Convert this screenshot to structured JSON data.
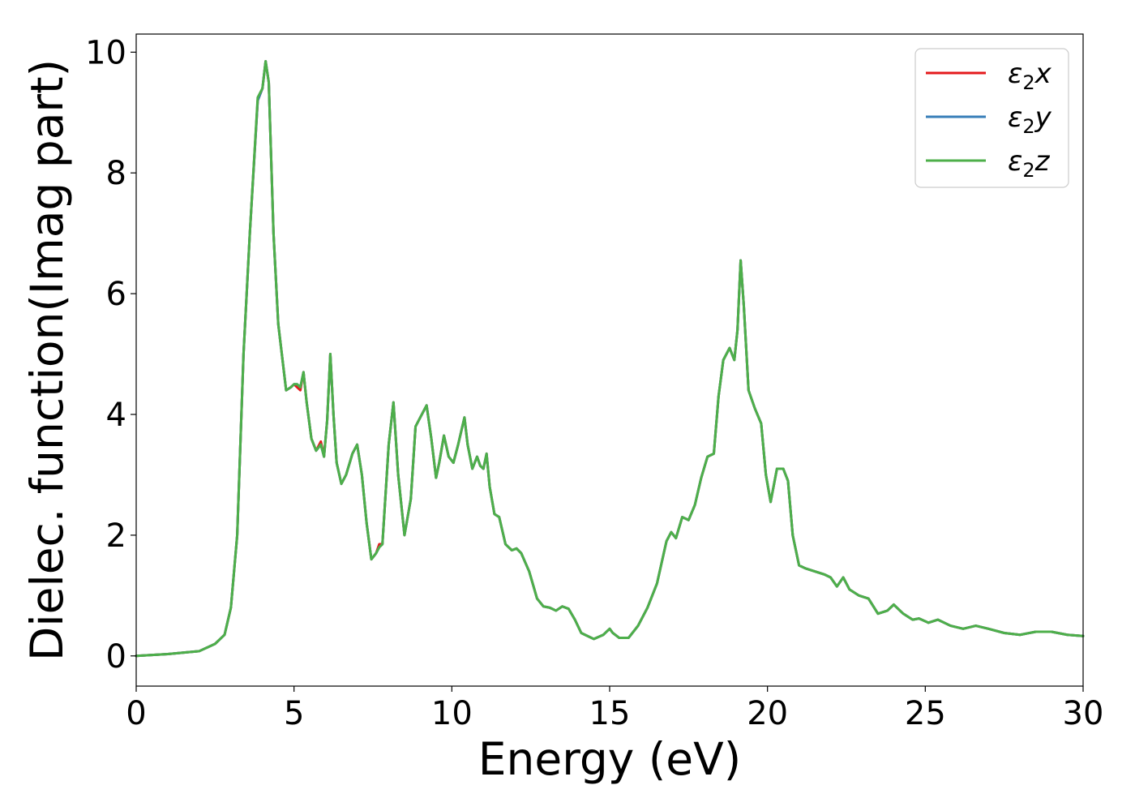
{
  "chart_data": {
    "type": "line",
    "xlabel": "Energy (eV)",
    "ylabel": "Dielec. function(Imag part)",
    "xlim": [
      0,
      30
    ],
    "ylim": [
      -0.5,
      10.3
    ],
    "xticks": [
      0,
      5,
      10,
      15,
      20,
      25,
      30
    ],
    "yticks": [
      0,
      2,
      4,
      6,
      8,
      10
    ],
    "grid": false,
    "legend_position": "top-right",
    "series": [
      {
        "name": "ε₂x",
        "sym": "ε",
        "sub": "2",
        "comp": "x",
        "color": "#e41a1c",
        "x": [
          0,
          1,
          2,
          2.5,
          2.8,
          3.0,
          3.2,
          3.4,
          3.6,
          3.85,
          4.0,
          4.1,
          4.2,
          4.35,
          4.5,
          4.75,
          4.9,
          5.0,
          5.1,
          5.2,
          5.3,
          5.4,
          5.55,
          5.7,
          5.85,
          5.95,
          6.05,
          6.15,
          6.25,
          6.35,
          6.5,
          6.65,
          6.85,
          7.0,
          7.15,
          7.3,
          7.45,
          7.6,
          7.7,
          7.8,
          8.0,
          8.15,
          8.3,
          8.5,
          8.7,
          8.85,
          9.0,
          9.2,
          9.35,
          9.5,
          9.6,
          9.75,
          9.9,
          10.05,
          10.2,
          10.4,
          10.5,
          10.65,
          10.8,
          10.9,
          11.0,
          11.1,
          11.2,
          11.35,
          11.5,
          11.7,
          11.9,
          12.05,
          12.2,
          12.45,
          12.7,
          12.9,
          13.1,
          13.3,
          13.5,
          13.7,
          13.9,
          14.1,
          14.3,
          14.5,
          14.8,
          15.0,
          15.1,
          15.3,
          15.6,
          15.9,
          16.2,
          16.5,
          16.8,
          16.95,
          17.1,
          17.3,
          17.5,
          17.7,
          17.9,
          18.1,
          18.3,
          18.45,
          18.6,
          18.8,
          18.95,
          19.05,
          19.15,
          19.25,
          19.4,
          19.6,
          19.8,
          19.95,
          20.1,
          20.3,
          20.5,
          20.65,
          20.8,
          21.0,
          21.2,
          21.5,
          21.8,
          22.0,
          22.2,
          22.4,
          22.6,
          22.9,
          23.2,
          23.5,
          23.8,
          24.0,
          24.3,
          24.6,
          24.8,
          25.1,
          25.4,
          25.8,
          26.2,
          26.6,
          27.0,
          27.5,
          28.0,
          28.5,
          29.0,
          29.5,
          30.0
        ],
        "values": [
          0,
          0.03,
          0.08,
          0.2,
          0.35,
          0.8,
          2.0,
          5.0,
          7.0,
          9.2,
          9.4,
          9.85,
          9.5,
          7.0,
          5.5,
          4.4,
          4.45,
          4.5,
          4.45,
          4.4,
          4.7,
          4.2,
          3.6,
          3.4,
          3.55,
          3.3,
          3.9,
          5.0,
          4.0,
          3.2,
          2.85,
          3.0,
          3.35,
          3.5,
          3.0,
          2.2,
          1.6,
          1.7,
          1.85,
          1.85,
          3.5,
          4.2,
          3.0,
          2.0,
          2.6,
          3.8,
          3.95,
          4.15,
          3.6,
          2.95,
          3.2,
          3.65,
          3.3,
          3.2,
          3.5,
          3.95,
          3.5,
          3.1,
          3.3,
          3.15,
          3.1,
          3.35,
          2.8,
          2.35,
          2.3,
          1.85,
          1.75,
          1.78,
          1.7,
          1.4,
          0.95,
          0.82,
          0.8,
          0.75,
          0.82,
          0.78,
          0.6,
          0.38,
          0.33,
          0.28,
          0.35,
          0.45,
          0.38,
          0.3,
          0.3,
          0.5,
          0.8,
          1.2,
          1.9,
          2.05,
          1.95,
          2.3,
          2.25,
          2.5,
          2.95,
          3.3,
          3.35,
          4.3,
          4.9,
          5.1,
          4.9,
          5.4,
          6.55,
          5.8,
          4.4,
          4.1,
          3.85,
          3.0,
          2.55,
          3.1,
          3.1,
          2.9,
          2.0,
          1.5,
          1.45,
          1.4,
          1.35,
          1.3,
          1.15,
          1.3,
          1.1,
          1.0,
          0.95,
          0.7,
          0.75,
          0.85,
          0.7,
          0.6,
          0.62,
          0.55,
          0.6,
          0.5,
          0.45,
          0.5,
          0.45,
          0.38,
          0.35,
          0.4,
          0.4,
          0.35,
          0.33
        ]
      },
      {
        "name": "ε₂y",
        "sym": "ε",
        "sub": "2",
        "comp": "y",
        "color": "#377eb8",
        "x": [
          0,
          1,
          2,
          2.5,
          2.8,
          3.0,
          3.2,
          3.4,
          3.6,
          3.85,
          4.0,
          4.1,
          4.2,
          4.35,
          4.5,
          4.75,
          4.9,
          5.0,
          5.1,
          5.2,
          5.3,
          5.4,
          5.55,
          5.7,
          5.85,
          5.95,
          6.05,
          6.15,
          6.25,
          6.35,
          6.5,
          6.65,
          6.85,
          7.0,
          7.15,
          7.3,
          7.45,
          7.6,
          7.7,
          7.8,
          8.0,
          8.15,
          8.3,
          8.5,
          8.7,
          8.85,
          9.0,
          9.2,
          9.35,
          9.5,
          9.6,
          9.75,
          9.9,
          10.05,
          10.2,
          10.4,
          10.5,
          10.65,
          10.8,
          10.9,
          11.0,
          11.1,
          11.2,
          11.35,
          11.5,
          11.7,
          11.9,
          12.05,
          12.2,
          12.45,
          12.7,
          12.9,
          13.1,
          13.3,
          13.5,
          13.7,
          13.9,
          14.1,
          14.3,
          14.5,
          14.8,
          15.0,
          15.1,
          15.3,
          15.6,
          15.9,
          16.2,
          16.5,
          16.8,
          16.95,
          17.1,
          17.3,
          17.5,
          17.7,
          17.9,
          18.1,
          18.3,
          18.45,
          18.6,
          18.8,
          18.95,
          19.05,
          19.15,
          19.25,
          19.4,
          19.6,
          19.8,
          19.95,
          20.1,
          20.3,
          20.5,
          20.65,
          20.8,
          21.0,
          21.2,
          21.5,
          21.8,
          22.0,
          22.2,
          22.4,
          22.6,
          22.9,
          23.2,
          23.5,
          23.8,
          24.0,
          24.3,
          24.6,
          24.8,
          25.1,
          25.4,
          25.8,
          26.2,
          26.6,
          27.0,
          27.5,
          28.0,
          28.5,
          29.0,
          29.5,
          30.0
        ],
        "values": [
          0,
          0.03,
          0.08,
          0.2,
          0.35,
          0.8,
          2.0,
          5.0,
          7.0,
          9.2,
          9.4,
          9.85,
          9.5,
          7.0,
          5.5,
          4.4,
          4.45,
          4.5,
          4.5,
          4.45,
          4.7,
          4.2,
          3.6,
          3.4,
          3.5,
          3.3,
          3.9,
          5.0,
          4.0,
          3.2,
          2.85,
          3.0,
          3.35,
          3.5,
          3.0,
          2.2,
          1.6,
          1.7,
          1.8,
          1.85,
          3.5,
          4.2,
          3.0,
          2.0,
          2.6,
          3.8,
          3.95,
          4.15,
          3.6,
          2.95,
          3.2,
          3.65,
          3.3,
          3.2,
          3.5,
          3.95,
          3.5,
          3.1,
          3.3,
          3.15,
          3.1,
          3.35,
          2.8,
          2.35,
          2.3,
          1.85,
          1.75,
          1.78,
          1.7,
          1.4,
          0.95,
          0.82,
          0.8,
          0.75,
          0.82,
          0.78,
          0.6,
          0.38,
          0.33,
          0.28,
          0.35,
          0.45,
          0.38,
          0.3,
          0.3,
          0.5,
          0.8,
          1.2,
          1.9,
          2.05,
          1.95,
          2.3,
          2.25,
          2.5,
          2.95,
          3.3,
          3.35,
          4.3,
          4.9,
          5.1,
          4.9,
          5.4,
          6.55,
          5.8,
          4.4,
          4.1,
          3.85,
          3.0,
          2.55,
          3.1,
          3.1,
          2.9,
          2.0,
          1.5,
          1.45,
          1.4,
          1.35,
          1.3,
          1.15,
          1.3,
          1.1,
          1.0,
          0.95,
          0.7,
          0.75,
          0.85,
          0.7,
          0.6,
          0.62,
          0.55,
          0.6,
          0.5,
          0.45,
          0.5,
          0.45,
          0.38,
          0.35,
          0.4,
          0.4,
          0.35,
          0.33
        ]
      },
      {
        "name": "ε₂z",
        "sym": "ε",
        "sub": "2",
        "comp": "z",
        "color": "#4daf4a",
        "x": [
          0,
          1,
          2,
          2.5,
          2.8,
          3.0,
          3.2,
          3.4,
          3.6,
          3.85,
          4.0,
          4.1,
          4.2,
          4.35,
          4.5,
          4.75,
          4.9,
          5.0,
          5.1,
          5.2,
          5.3,
          5.4,
          5.55,
          5.7,
          5.85,
          5.95,
          6.05,
          6.15,
          6.25,
          6.35,
          6.5,
          6.65,
          6.85,
          7.0,
          7.15,
          7.3,
          7.45,
          7.6,
          7.7,
          7.8,
          8.0,
          8.15,
          8.3,
          8.5,
          8.7,
          8.85,
          9.0,
          9.2,
          9.35,
          9.5,
          9.6,
          9.75,
          9.9,
          10.05,
          10.2,
          10.4,
          10.5,
          10.65,
          10.8,
          10.9,
          11.0,
          11.1,
          11.2,
          11.35,
          11.5,
          11.7,
          11.9,
          12.05,
          12.2,
          12.45,
          12.7,
          12.9,
          13.1,
          13.3,
          13.5,
          13.7,
          13.9,
          14.1,
          14.3,
          14.5,
          14.8,
          15.0,
          15.1,
          15.3,
          15.6,
          15.9,
          16.2,
          16.5,
          16.8,
          16.95,
          17.1,
          17.3,
          17.5,
          17.7,
          17.9,
          18.1,
          18.3,
          18.45,
          18.6,
          18.8,
          18.95,
          19.05,
          19.15,
          19.25,
          19.4,
          19.6,
          19.8,
          19.95,
          20.1,
          20.3,
          20.5,
          20.65,
          20.8,
          21.0,
          21.2,
          21.5,
          21.8,
          22.0,
          22.2,
          22.4,
          22.6,
          22.9,
          23.2,
          23.5,
          23.8,
          24.0,
          24.3,
          24.6,
          24.8,
          25.1,
          25.4,
          25.8,
          26.2,
          26.6,
          27.0,
          27.5,
          28.0,
          28.5,
          29.0,
          29.5,
          30.0
        ],
        "values": [
          0,
          0.03,
          0.08,
          0.2,
          0.35,
          0.8,
          2.0,
          5.0,
          7.0,
          9.25,
          9.4,
          9.85,
          9.5,
          7.0,
          5.5,
          4.4,
          4.45,
          4.5,
          4.5,
          4.45,
          4.7,
          4.2,
          3.6,
          3.4,
          3.5,
          3.3,
          3.9,
          5.0,
          4.0,
          3.2,
          2.85,
          3.0,
          3.35,
          3.5,
          3.0,
          2.2,
          1.6,
          1.7,
          1.8,
          1.85,
          3.5,
          4.2,
          3.0,
          2.0,
          2.6,
          3.8,
          3.95,
          4.15,
          3.6,
          2.95,
          3.2,
          3.65,
          3.3,
          3.2,
          3.5,
          3.95,
          3.5,
          3.1,
          3.3,
          3.15,
          3.1,
          3.35,
          2.8,
          2.35,
          2.3,
          1.85,
          1.75,
          1.78,
          1.7,
          1.4,
          0.95,
          0.82,
          0.8,
          0.75,
          0.82,
          0.78,
          0.6,
          0.38,
          0.33,
          0.28,
          0.35,
          0.45,
          0.38,
          0.3,
          0.3,
          0.5,
          0.8,
          1.2,
          1.9,
          2.05,
          1.95,
          2.3,
          2.25,
          2.5,
          2.95,
          3.3,
          3.35,
          4.3,
          4.9,
          5.1,
          4.9,
          5.4,
          6.55,
          5.8,
          4.4,
          4.1,
          3.85,
          3.0,
          2.55,
          3.1,
          3.1,
          2.9,
          2.0,
          1.5,
          1.45,
          1.4,
          1.35,
          1.3,
          1.15,
          1.3,
          1.1,
          1.0,
          0.95,
          0.7,
          0.75,
          0.85,
          0.7,
          0.6,
          0.62,
          0.55,
          0.6,
          0.5,
          0.45,
          0.5,
          0.45,
          0.38,
          0.35,
          0.4,
          0.4,
          0.35,
          0.33
        ]
      }
    ]
  }
}
